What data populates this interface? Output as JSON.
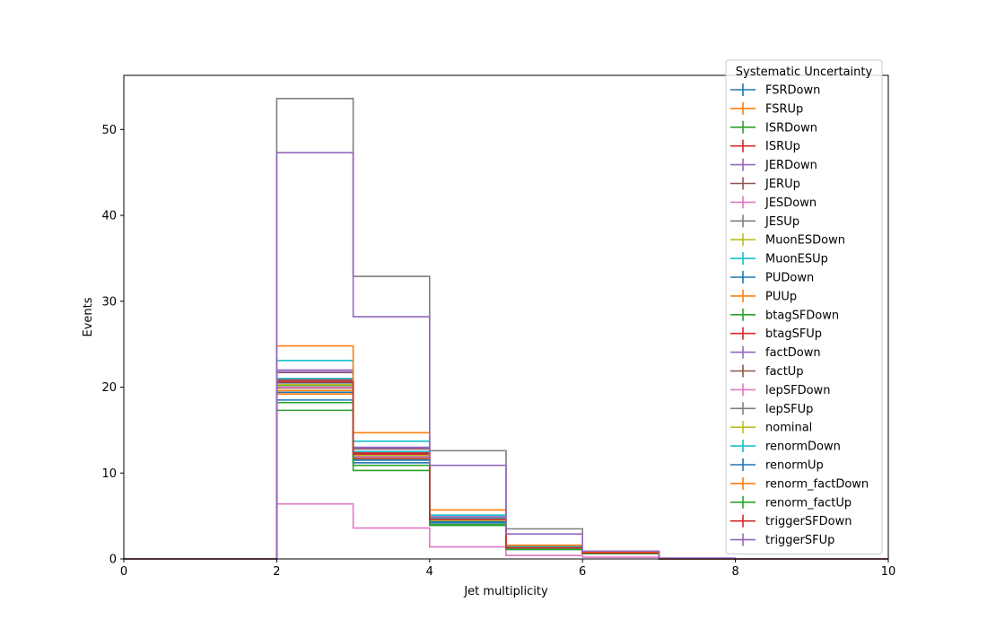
{
  "chart_data": {
    "type": "step-histogram",
    "xlabel": "Jet multiplicity",
    "ylabel": "Events",
    "xlim": [
      0,
      10
    ],
    "ylim": [
      0,
      56.3
    ],
    "x_ticks": [
      0,
      2,
      4,
      6,
      8,
      10
    ],
    "y_ticks": [
      0,
      10,
      20,
      30,
      40,
      50
    ],
    "bin_edges": [
      0,
      1,
      2,
      3,
      4,
      5,
      6,
      7,
      8,
      9,
      10
    ],
    "grid": false,
    "legend": {
      "title": "Systematic Uncertainty",
      "placement": "top-right"
    },
    "series": [
      {
        "name": "FSRDown",
        "color": "#1f77b4",
        "values": [
          0,
          0,
          18.5,
          11.2,
          4.2,
          1.1,
          0.6,
          0,
          0,
          0
        ]
      },
      {
        "name": "FSRUp",
        "color": "#ff7f0e",
        "values": [
          0,
          0,
          19.2,
          11.6,
          4.4,
          1.3,
          0.7,
          0,
          0,
          0
        ]
      },
      {
        "name": "ISRDown",
        "color": "#2ca02c",
        "values": [
          0,
          0,
          20.2,
          12.0,
          4.5,
          1.3,
          0.7,
          0,
          0,
          0
        ]
      },
      {
        "name": "ISRUp",
        "color": "#d62728",
        "values": [
          0,
          0,
          20.7,
          12.3,
          4.6,
          1.3,
          0.7,
          0,
          0,
          0
        ]
      },
      {
        "name": "JERDown",
        "color": "#9467bd",
        "values": [
          0,
          0,
          22.0,
          13.0,
          4.9,
          1.4,
          0.8,
          0,
          0,
          0
        ]
      },
      {
        "name": "JERUp",
        "color": "#8c564b",
        "values": [
          0,
          0,
          21.7,
          12.8,
          4.8,
          1.4,
          0.8,
          0,
          0,
          0
        ]
      },
      {
        "name": "JESDown",
        "color": "#e377c2",
        "values": [
          0,
          0,
          6.4,
          3.6,
          1.4,
          0.4,
          0.2,
          0,
          0,
          0
        ]
      },
      {
        "name": "JESUp",
        "color": "#7f7f7f",
        "values": [
          0,
          0,
          20.8,
          12.5,
          4.6,
          1.4,
          0.7,
          0,
          0,
          0
        ]
      },
      {
        "name": "MuonESDown",
        "color": "#bcbd22",
        "values": [
          0,
          0,
          20.3,
          12.1,
          4.6,
          1.3,
          0.7,
          0,
          0,
          0
        ]
      },
      {
        "name": "MuonESUp",
        "color": "#17becf",
        "values": [
          0,
          0,
          23.1,
          13.7,
          5.1,
          1.5,
          0.8,
          0,
          0,
          0
        ]
      },
      {
        "name": "PUDown",
        "color": "#1f77b4",
        "values": [
          0,
          0,
          20.5,
          12.2,
          4.6,
          1.3,
          0.7,
          0,
          0,
          0
        ]
      },
      {
        "name": "PUUp",
        "color": "#ff7f0e",
        "values": [
          0,
          0,
          19.6,
          11.8,
          4.4,
          1.3,
          0.7,
          0,
          0,
          0
        ]
      },
      {
        "name": "btagSFDown",
        "color": "#2ca02c",
        "values": [
          0,
          0,
          17.3,
          10.3,
          3.9,
          1.1,
          0.6,
          0,
          0,
          0
        ]
      },
      {
        "name": "btagSFUp",
        "color": "#d62728",
        "values": [
          0,
          0,
          20.9,
          12.4,
          4.6,
          1.3,
          0.7,
          0,
          0,
          0
        ]
      },
      {
        "name": "factDown",
        "color": "#9467bd",
        "values": [
          0,
          0,
          21.8,
          12.9,
          4.8,
          1.4,
          0.8,
          0,
          0,
          0
        ]
      },
      {
        "name": "factUp",
        "color": "#8c564b",
        "values": [
          0,
          0,
          19.9,
          11.7,
          4.4,
          1.3,
          0.7,
          0,
          0,
          0
        ]
      },
      {
        "name": "lepSFDown",
        "color": "#e377c2",
        "values": [
          0,
          0,
          20.0,
          11.9,
          4.5,
          1.3,
          0.7,
          0,
          0,
          0
        ]
      },
      {
        "name": "lepSFUp",
        "color": "#7f7f7f",
        "values": [
          0,
          0,
          53.6,
          32.9,
          12.6,
          3.5,
          0.9,
          0,
          0,
          0
        ]
      },
      {
        "name": "nominal",
        "color": "#bcbd22",
        "values": [
          0,
          0,
          20.3,
          12.1,
          4.5,
          1.3,
          0.7,
          0,
          0,
          0
        ]
      },
      {
        "name": "renormDown",
        "color": "#17becf",
        "values": [
          0,
          0,
          21.0,
          12.5,
          4.7,
          1.4,
          0.7,
          0,
          0,
          0
        ]
      },
      {
        "name": "renormUp",
        "color": "#1f77b4",
        "values": [
          0,
          0,
          19.4,
          11.5,
          4.3,
          1.3,
          0.7,
          0,
          0,
          0
        ]
      },
      {
        "name": "renorm_factDown",
        "color": "#ff7f0e",
        "values": [
          0,
          0,
          24.8,
          14.7,
          5.7,
          1.6,
          0.8,
          0,
          0,
          0
        ]
      },
      {
        "name": "renorm_factUp",
        "color": "#2ca02c",
        "values": [
          0,
          0,
          18.2,
          10.9,
          4.0,
          1.2,
          0.6,
          0,
          0,
          0
        ]
      },
      {
        "name": "triggerSFDown",
        "color": "#d62728",
        "values": [
          0,
          0,
          20.6,
          12.2,
          4.6,
          1.3,
          0.7,
          0,
          0,
          0
        ]
      },
      {
        "name": "triggerSFUp",
        "color": "#9467bd",
        "values": [
          0,
          0,
          47.3,
          28.2,
          10.9,
          2.9,
          0.9,
          0.1,
          0,
          0
        ]
      }
    ]
  }
}
